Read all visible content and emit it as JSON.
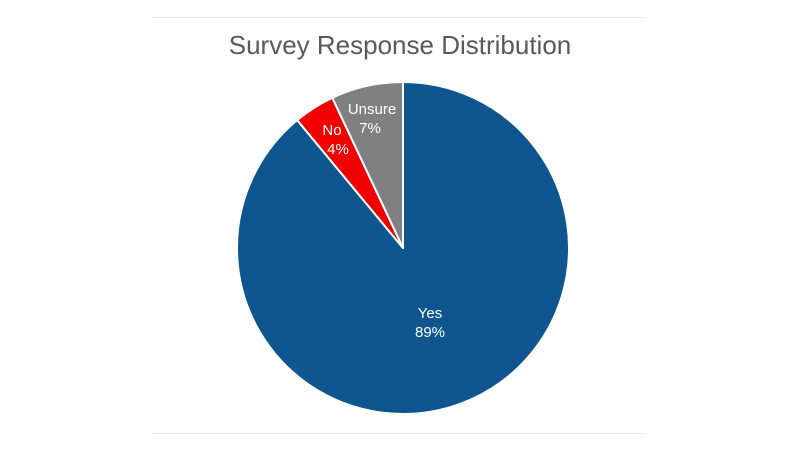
{
  "chart_data": {
    "type": "pie",
    "title": "Survey Response Distribution",
    "categories": [
      "Yes",
      "No",
      "Unsure"
    ],
    "values": [
      89,
      4,
      7
    ],
    "unit": "%",
    "colors": [
      "#0F5690",
      "#F00000",
      "#808080"
    ],
    "start_angle": "12 o'clock",
    "direction": "clockwise",
    "data_labels": [
      "Yes 89%",
      "No 4%",
      "Unsure 7%"
    ],
    "legend": "none"
  },
  "labels": {
    "yes": {
      "name": "Yes",
      "pct": "89%"
    },
    "no": {
      "name": "No",
      "pct": "4%"
    },
    "unsure": {
      "name": "Unsure",
      "pct": "7%"
    }
  }
}
